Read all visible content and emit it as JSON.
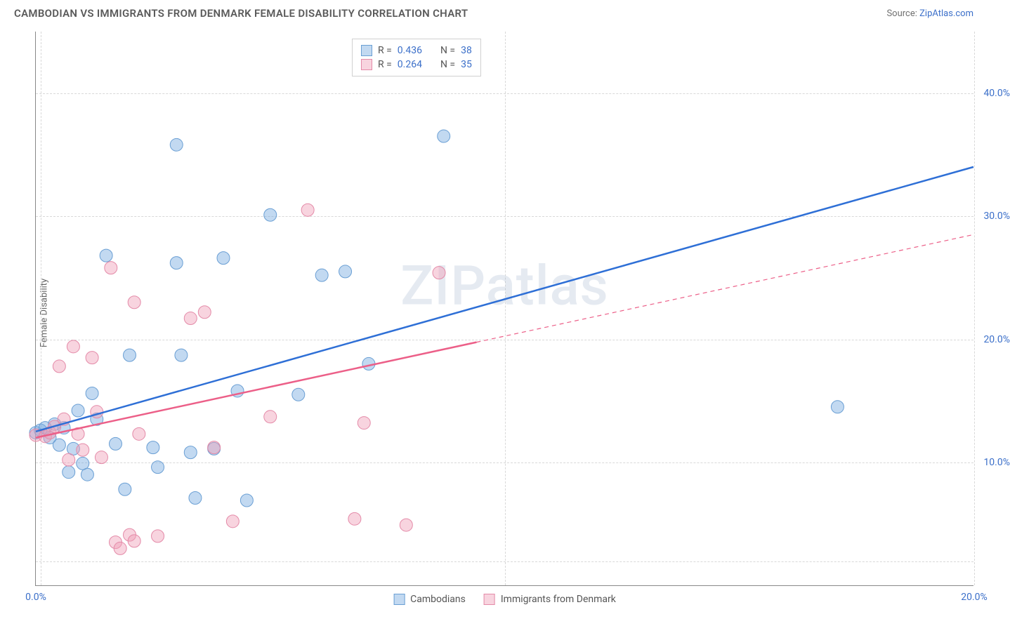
{
  "title": "CAMBODIAN VS IMMIGRANTS FROM DENMARK FEMALE DISABILITY CORRELATION CHART",
  "source_label": "Source:",
  "source_name": "ZipAtlas.com",
  "watermark": "ZIPatlas",
  "y_axis_label": "Female Disability",
  "chart": {
    "type": "scatter",
    "xlim": [
      0,
      20
    ],
    "ylim": [
      0,
      45
    ],
    "xtick_labels": [
      "0.0%",
      "20.0%"
    ],
    "xtick_positions": [
      0,
      20
    ],
    "ytick_labels": [
      "10.0%",
      "20.0%",
      "30.0%",
      "40.0%"
    ],
    "ytick_positions": [
      10,
      20,
      30,
      40
    ],
    "xgrid_positions": [
      0.1,
      10,
      20
    ],
    "ygrid_positions": [
      2,
      10,
      20,
      30,
      40
    ],
    "background": "#ffffff",
    "grid_color": "#d8d8d8",
    "axis_color": "#888888"
  },
  "series": [
    {
      "name": "Cambodians",
      "color_fill": "rgba(120,170,225,0.45)",
      "color_stroke": "#6a9fd4",
      "line_color": "#2e6fd6",
      "line_width": 2.5,
      "marker_radius": 9,
      "R": "0.436",
      "N": "38",
      "trend": {
        "x1": 0,
        "y1": 12.5,
        "x2": 20,
        "y2": 34,
        "dash_after_x": null
      },
      "points": [
        [
          0.0,
          12.4
        ],
        [
          0.1,
          12.6
        ],
        [
          0.2,
          12.8
        ],
        [
          0.3,
          12.0
        ],
        [
          0.4,
          13.1
        ],
        [
          0.5,
          11.4
        ],
        [
          0.6,
          12.8
        ],
        [
          0.7,
          9.2
        ],
        [
          0.8,
          11.1
        ],
        [
          0.9,
          14.2
        ],
        [
          1.0,
          9.9
        ],
        [
          1.1,
          9.0
        ],
        [
          1.2,
          15.6
        ],
        [
          1.3,
          13.5
        ],
        [
          1.5,
          26.8
        ],
        [
          1.7,
          11.5
        ],
        [
          1.9,
          7.8
        ],
        [
          2.0,
          18.7
        ],
        [
          2.5,
          11.2
        ],
        [
          2.6,
          9.6
        ],
        [
          3.0,
          35.8
        ],
        [
          3.0,
          26.2
        ],
        [
          3.1,
          18.7
        ],
        [
          3.3,
          10.8
        ],
        [
          3.4,
          7.1
        ],
        [
          3.8,
          11.1
        ],
        [
          4.0,
          26.6
        ],
        [
          4.3,
          15.8
        ],
        [
          4.5,
          6.9
        ],
        [
          5.0,
          30.1
        ],
        [
          5.6,
          15.5
        ],
        [
          6.1,
          25.2
        ],
        [
          6.6,
          25.5
        ],
        [
          7.1,
          18.0
        ],
        [
          8.7,
          36.5
        ],
        [
          17.1,
          14.5
        ]
      ]
    },
    {
      "name": "Immigrants from Denmark",
      "color_fill": "rgba(240,160,185,0.45)",
      "color_stroke": "#e48aa8",
      "line_color": "#ec5f88",
      "line_width": 2.5,
      "marker_radius": 9,
      "R": "0.264",
      "N": "35",
      "trend": {
        "x1": 0,
        "y1": 12.0,
        "x2": 20,
        "y2": 28.5,
        "dash_after_x": 9.4
      },
      "points": [
        [
          0.0,
          12.2
        ],
        [
          0.2,
          12.1
        ],
        [
          0.3,
          12.4
        ],
        [
          0.4,
          12.9
        ],
        [
          0.5,
          17.8
        ],
        [
          0.6,
          13.5
        ],
        [
          0.7,
          10.2
        ],
        [
          0.8,
          19.4
        ],
        [
          0.9,
          12.3
        ],
        [
          1.0,
          11.0
        ],
        [
          1.2,
          18.5
        ],
        [
          1.3,
          14.1
        ],
        [
          1.4,
          10.4
        ],
        [
          1.6,
          25.8
        ],
        [
          1.7,
          3.5
        ],
        [
          1.8,
          3.0
        ],
        [
          2.0,
          4.1
        ],
        [
          2.1,
          3.6
        ],
        [
          2.1,
          23.0
        ],
        [
          2.2,
          12.3
        ],
        [
          2.6,
          4.0
        ],
        [
          3.3,
          21.7
        ],
        [
          3.6,
          22.2
        ],
        [
          3.8,
          11.2
        ],
        [
          4.2,
          5.2
        ],
        [
          5.0,
          13.7
        ],
        [
          5.8,
          30.5
        ],
        [
          6.8,
          5.4
        ],
        [
          7.0,
          13.2
        ],
        [
          7.9,
          4.9
        ],
        [
          8.6,
          25.4
        ]
      ]
    }
  ],
  "legend_top_labels": {
    "R": "R =",
    "N": "N ="
  },
  "legend_bottom": [
    "Cambodians",
    "Immigrants from Denmark"
  ]
}
